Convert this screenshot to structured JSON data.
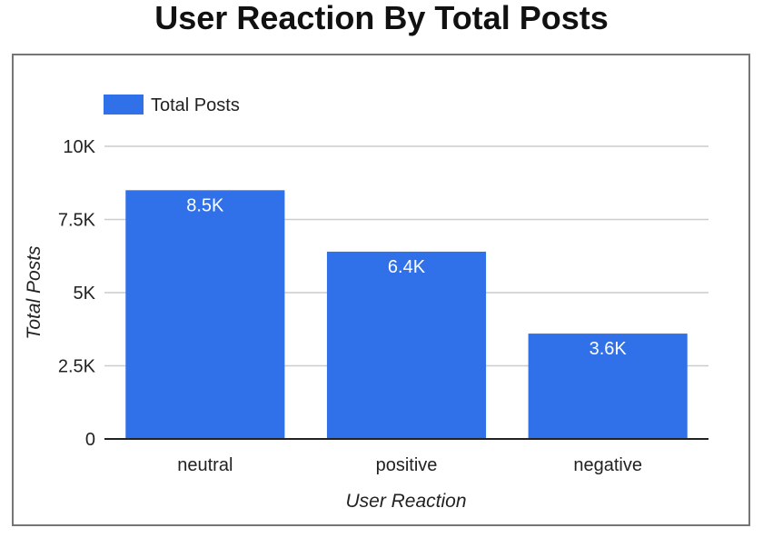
{
  "chart_data": {
    "type": "bar",
    "title": "User Reaction By Total Posts",
    "xlabel": "User Reaction",
    "ylabel": "Total Posts",
    "categories": [
      "neutral",
      "positive",
      "negative"
    ],
    "series": [
      {
        "name": "Total Posts",
        "values": [
          8500,
          6400,
          3600
        ],
        "labels": [
          "8.5K",
          "6.4K",
          "3.6K"
        ],
        "color": "#3070E8"
      }
    ],
    "ylim": [
      0,
      10000
    ],
    "yticks": [
      0,
      2500,
      5000,
      7500,
      10000
    ],
    "ytick_labels": [
      "0",
      "2.5K",
      "5K",
      "7.5K",
      "10K"
    ],
    "grid": true,
    "legend": "top-left"
  }
}
